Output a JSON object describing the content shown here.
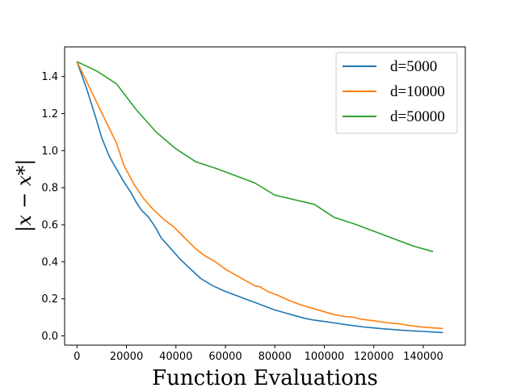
{
  "chart_data": {
    "type": "line",
    "title": "",
    "xlabel": "Function Evaluations",
    "ylabel": "|x − x*|",
    "xlim": [
      -5000,
      157000
    ],
    "ylim": [
      -0.05,
      1.56
    ],
    "xticks": [
      0,
      20000,
      40000,
      60000,
      80000,
      100000,
      120000,
      140000
    ],
    "yticks": [
      0.0,
      0.2,
      0.4,
      0.6,
      0.8,
      1.0,
      1.2,
      1.4
    ],
    "grid": false,
    "legend_position": "top-right",
    "series": [
      {
        "name": "d=5000",
        "color": "#1f77b4",
        "x": [
          0,
          4000,
          8000,
          10000,
          13000,
          16000,
          19000,
          22000,
          24000,
          26000,
          29000,
          32000,
          34000,
          38000,
          42000,
          46000,
          50000,
          55000,
          60000,
          64000,
          68000,
          72000,
          76000,
          80000,
          84000,
          88000,
          92000,
          96000,
          100000,
          104000,
          108000,
          112000,
          116000,
          120000,
          124000,
          128000,
          132000,
          136000,
          140000,
          144000,
          148000
        ],
        "y": [
          1.48,
          1.33,
          1.16,
          1.07,
          0.97,
          0.9,
          0.83,
          0.77,
          0.72,
          0.68,
          0.64,
          0.58,
          0.53,
          0.47,
          0.41,
          0.36,
          0.31,
          0.27,
          0.24,
          0.22,
          0.2,
          0.18,
          0.16,
          0.14,
          0.125,
          0.11,
          0.095,
          0.085,
          0.078,
          0.07,
          0.062,
          0.055,
          0.048,
          0.043,
          0.038,
          0.034,
          0.03,
          0.027,
          0.024,
          0.021,
          0.018
        ]
      },
      {
        "name": "d=10000",
        "color": "#ff7f0e",
        "x": [
          0,
          4000,
          8000,
          12000,
          16000,
          19000,
          23000,
          27000,
          31000,
          35000,
          39000,
          42000,
          45000,
          48000,
          52000,
          56000,
          60000,
          64000,
          68000,
          72000,
          74000,
          77000,
          81000,
          86000,
          90000,
          95000,
          100000,
          104000,
          108000,
          112000,
          115000,
          118000,
          122000,
          126000,
          130000,
          134000,
          138000,
          142000,
          148000
        ],
        "y": [
          1.48,
          1.37,
          1.26,
          1.15,
          1.04,
          0.92,
          0.82,
          0.74,
          0.68,
          0.63,
          0.59,
          0.55,
          0.51,
          0.47,
          0.43,
          0.4,
          0.36,
          0.33,
          0.3,
          0.27,
          0.265,
          0.24,
          0.22,
          0.19,
          0.17,
          0.15,
          0.13,
          0.115,
          0.105,
          0.1,
          0.09,
          0.085,
          0.078,
          0.07,
          0.065,
          0.057,
          0.05,
          0.045,
          0.04
        ]
      },
      {
        "name": "d=50000",
        "color": "#2ca02c",
        "x": [
          0,
          8000,
          16000,
          24000,
          32000,
          40000,
          48000,
          56000,
          64000,
          72000,
          80000,
          88000,
          96000,
          104000,
          112000,
          120000,
          128000,
          136000,
          144000
        ],
        "y": [
          1.48,
          1.43,
          1.36,
          1.22,
          1.1,
          1.01,
          0.94,
          0.905,
          0.865,
          0.825,
          0.76,
          0.735,
          0.71,
          0.64,
          0.605,
          0.565,
          0.525,
          0.485,
          0.455
        ]
      }
    ]
  }
}
